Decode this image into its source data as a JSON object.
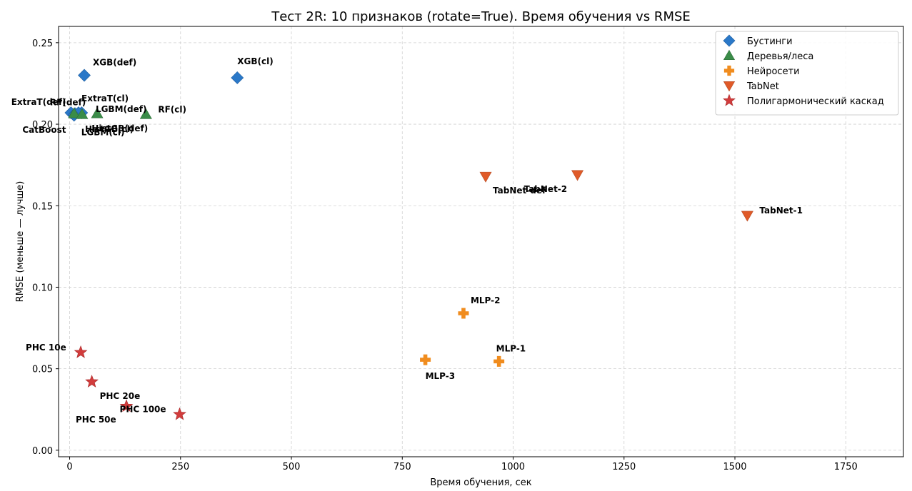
{
  "chart_data": {
    "type": "scatter",
    "title": "Тест 2R: 10 признаков (rotate=True). Время обучения vs RMSE",
    "xlabel": "Время обучения, сек",
    "ylabel": "RMSE (меньше — лучше)",
    "xlim": [
      -25,
      1880
    ],
    "ylim": [
      -0.004,
      0.26
    ],
    "xticks": [
      0,
      250,
      500,
      750,
      1000,
      1250,
      1500,
      1750
    ],
    "yticks": [
      0.0,
      0.05,
      0.1,
      0.15,
      0.2,
      0.25
    ],
    "xtick_labels": [
      "0",
      "250",
      "500",
      "750",
      "1000",
      "1250",
      "1500",
      "1750"
    ],
    "ytick_labels": [
      "0.00",
      "0.05",
      "0.10",
      "0.15",
      "0.20",
      "0.25"
    ],
    "grid": true,
    "legend_position": "top-right",
    "series": [
      {
        "name": "Бустинги",
        "color": "#2a78c8",
        "marker": "diamond",
        "points": [
          {
            "label": "XGB(def)",
            "x": 33,
            "y": 0.23
          },
          {
            "label": "XGB(cl)",
            "x": 378,
            "y": 0.2285
          },
          {
            "label": "CatBoost",
            "x": 3,
            "y": 0.207
          },
          {
            "label": "HistGB(def)",
            "x": 27,
            "y": 0.207
          },
          {
            "label": "HistGB(cl)",
            "x": 12,
            "y": 0.2065
          },
          {
            "label": "LGBM(def)",
            "x": 20,
            "y": 0.207
          },
          {
            "label": "LGBM(cl)",
            "x": 10,
            "y": 0.2055
          }
        ]
      },
      {
        "name": "Деревья/леса",
        "color": "#3a8c48",
        "marker": "triangle-up",
        "points": [
          {
            "label": "ExtraT(def)",
            "x": 10,
            "y": 0.2065
          },
          {
            "label": "RF(def)",
            "x": 28,
            "y": 0.206
          },
          {
            "label": "ExtraT(cl)",
            "x": 62,
            "y": 0.2065
          },
          {
            "label": "RF(cl)",
            "x": 172,
            "y": 0.206
          }
        ]
      },
      {
        "name": "Нейросети",
        "color": "#f08c1e",
        "marker": "plus",
        "points": [
          {
            "label": "MLP-2",
            "x": 888,
            "y": 0.084
          },
          {
            "label": "MLP-1",
            "x": 968,
            "y": 0.0545
          },
          {
            "label": "MLP-3",
            "x": 802,
            "y": 0.0555
          }
        ]
      },
      {
        "name": "TabNet",
        "color": "#e05a28",
        "marker": "triangle-down",
        "points": [
          {
            "label": "TabNet-def",
            "x": 938,
            "y": 0.168
          },
          {
            "label": "TabNet-2",
            "x": 1145,
            "y": 0.169
          },
          {
            "label": "TabNet-1",
            "x": 1528,
            "y": 0.144
          }
        ]
      },
      {
        "name": "Полигармонический каскад",
        "color": "#d23c3c",
        "marker": "star",
        "points": [
          {
            "label": "PHC 10e",
            "x": 25,
            "y": 0.06
          },
          {
            "label": "PHC 20e",
            "x": 50,
            "y": 0.042
          },
          {
            "label": "PHC 50e",
            "x": 128,
            "y": 0.027
          },
          {
            "label": "PHC 100e",
            "x": 248,
            "y": 0.022
          }
        ]
      }
    ]
  }
}
